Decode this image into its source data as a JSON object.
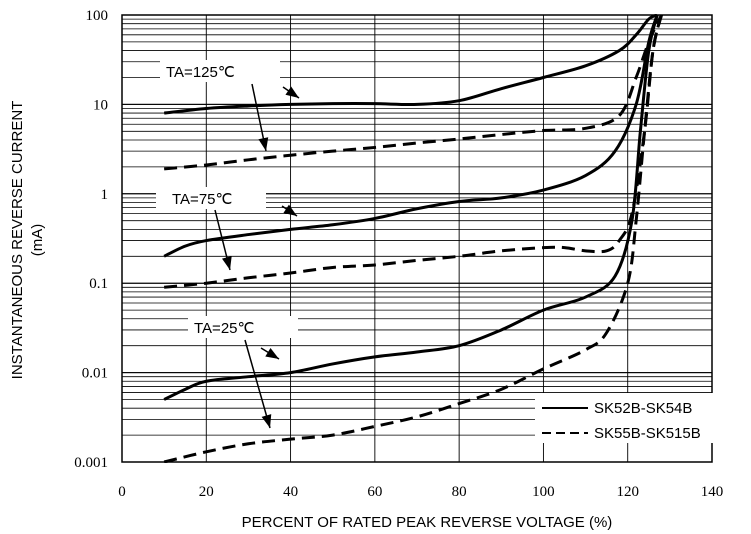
{
  "chart_data": {
    "type": "line",
    "title": "",
    "xlabel": "PERCENT OF RATED PEAK REVERSE VOLTAGE (%)",
    "ylabel": "INSTANTANEOUS REVERSE CURRENT",
    "ylabel_unit": "(mA)",
    "x_scale": "linear",
    "y_scale": "log",
    "xlim": [
      0,
      140
    ],
    "ylim": [
      0.001,
      100
    ],
    "x_ticks": [
      0,
      20,
      40,
      60,
      80,
      100,
      120,
      140
    ],
    "x_tick_labels": [
      "0",
      "20",
      "40",
      "60",
      "80",
      "100",
      "120",
      "140"
    ],
    "y_ticks": [
      0.001,
      0.01,
      0.1,
      1,
      10,
      100
    ],
    "y_tick_labels": [
      "0.001",
      "0.01",
      "0.1",
      "1",
      "10",
      "100"
    ],
    "grid": true,
    "legend_position": "bottom-right",
    "legend": [
      {
        "label": "SK52B-SK54B",
        "style": "solid"
      },
      {
        "label": "SK55B-SK515B",
        "style": "dashed"
      }
    ],
    "annotations": [
      {
        "text": "TA=125℃"
      },
      {
        "text": "TA=75℃"
      },
      {
        "text": "TA=25℃"
      }
    ],
    "series": [
      {
        "group": "SK52B-SK54B",
        "temperature": "TA=125℃",
        "style": "solid",
        "x": [
          10,
          20,
          30,
          40,
          50,
          60,
          70,
          80,
          90,
          100,
          110,
          118,
          122,
          125,
          127
        ],
        "y": [
          8,
          9,
          9.6,
          10,
          10.2,
          10.2,
          10,
          11,
          15,
          20,
          27,
          40,
          60,
          90,
          100
        ]
      },
      {
        "group": "SK55B-SK515B",
        "temperature": "TA=125℃",
        "style": "dashed",
        "x": [
          10,
          20,
          30,
          40,
          50,
          60,
          70,
          80,
          90,
          100,
          110,
          118,
          122,
          125,
          128
        ],
        "y": [
          1.9,
          2.1,
          2.4,
          2.7,
          3,
          3.3,
          3.7,
          4.1,
          4.6,
          5.1,
          5.4,
          7.5,
          20,
          50,
          100
        ]
      },
      {
        "group": "SK52B-SK54B",
        "temperature": "TA=75℃",
        "style": "solid",
        "x": [
          10,
          15,
          20,
          30,
          40,
          50,
          60,
          70,
          80,
          90,
          100,
          110,
          117,
          122,
          125,
          127
        ],
        "y": [
          0.2,
          0.26,
          0.3,
          0.35,
          0.4,
          0.45,
          0.53,
          0.68,
          0.82,
          0.9,
          1.1,
          1.6,
          3,
          10,
          50,
          100
        ]
      },
      {
        "group": "SK55B-SK515B",
        "temperature": "TA=75℃",
        "style": "dashed",
        "x": [
          10,
          20,
          30,
          40,
          50,
          60,
          70,
          80,
          90,
          100,
          105,
          110,
          115,
          118,
          121,
          124,
          126,
          128
        ],
        "y": [
          0.09,
          0.1,
          0.115,
          0.13,
          0.15,
          0.16,
          0.18,
          0.2,
          0.23,
          0.25,
          0.25,
          0.23,
          0.23,
          0.3,
          0.6,
          5,
          40,
          100
        ]
      },
      {
        "group": "SK52B-SK54B",
        "temperature": "TA=25℃",
        "style": "solid",
        "x": [
          10,
          15,
          20,
          30,
          40,
          50,
          60,
          70,
          80,
          90,
          100,
          110,
          117,
          121,
          123,
          125,
          127
        ],
        "y": [
          0.005,
          0.0065,
          0.008,
          0.009,
          0.01,
          0.0125,
          0.015,
          0.017,
          0.02,
          0.03,
          0.05,
          0.07,
          0.12,
          0.5,
          5,
          40,
          100
        ]
      },
      {
        "group": "SK55B-SK515B",
        "temperature": "TA=25℃",
        "style": "dashed",
        "x": [
          10,
          20,
          30,
          40,
          50,
          60,
          70,
          80,
          90,
          100,
          110,
          115,
          120,
          122,
          124,
          126,
          128
        ],
        "y": [
          0.001,
          0.0013,
          0.0016,
          0.0018,
          0.002,
          0.0025,
          0.0032,
          0.0045,
          0.0065,
          0.011,
          0.018,
          0.028,
          0.1,
          0.5,
          5,
          40,
          100
        ]
      }
    ]
  }
}
